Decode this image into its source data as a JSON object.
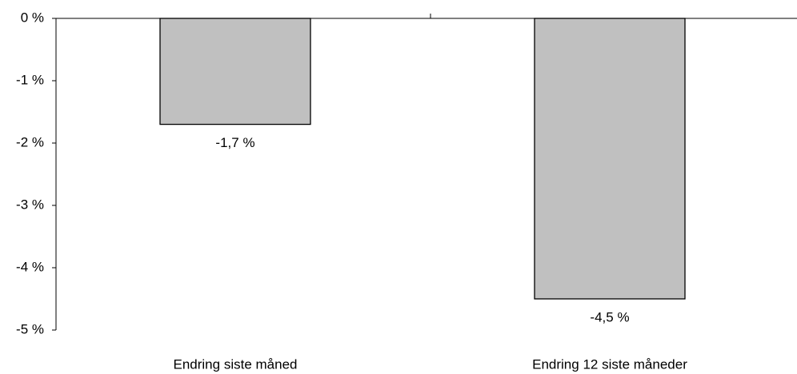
{
  "chart_data": {
    "type": "bar",
    "categories": [
      "Endring siste måned",
      "Endring 12 siste måneder"
    ],
    "values": [
      -1.7,
      -4.5
    ],
    "value_labels": [
      "-1,7 %",
      "-4,5 %"
    ],
    "color": "#c0c0c0",
    "ylim": [
      -5,
      0
    ],
    "yticks": [
      {
        "value": 0,
        "label": "0 %"
      },
      {
        "value": -1,
        "label": "-1 %"
      },
      {
        "value": -2,
        "label": "-2 %"
      },
      {
        "value": -3,
        "label": "-3 %"
      },
      {
        "value": -4,
        "label": "-4 %"
      },
      {
        "value": -5,
        "label": "-5 %"
      }
    ]
  }
}
